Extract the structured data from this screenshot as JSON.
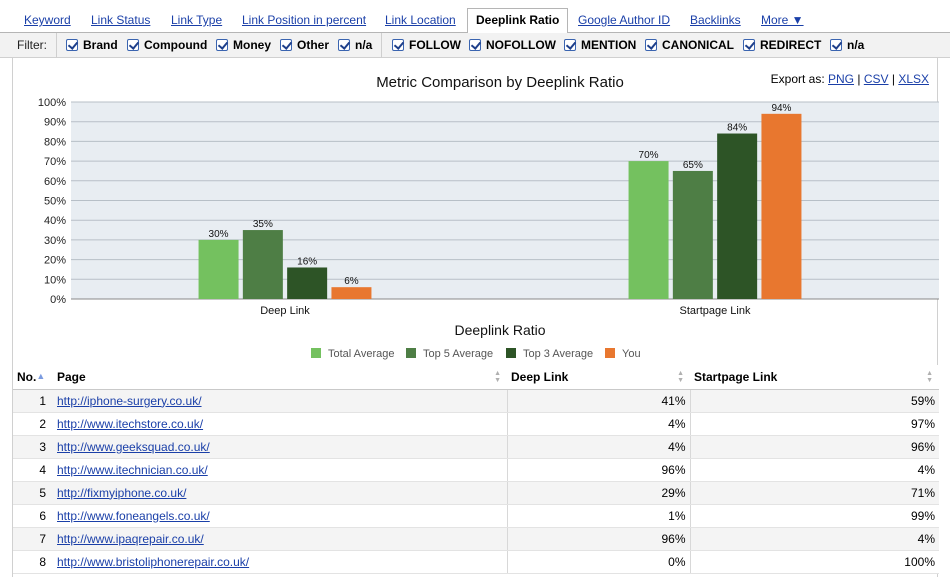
{
  "tabs": [
    {
      "label": "Keyword",
      "active": false
    },
    {
      "label": "Link Status",
      "active": false
    },
    {
      "label": "Link Type",
      "active": false
    },
    {
      "label": "Link Position in percent",
      "active": false
    },
    {
      "label": "Link Location",
      "active": false
    },
    {
      "label": "Deeplink Ratio",
      "active": true
    },
    {
      "label": "Google Author ID",
      "active": false
    },
    {
      "label": "Backlinks",
      "active": false
    },
    {
      "label": "More ▼",
      "active": false
    }
  ],
  "filter": {
    "label": "Filter:",
    "checkboxes": [
      {
        "label": "Brand",
        "checked": true
      },
      {
        "label": "Compound",
        "checked": true
      },
      {
        "label": "Money",
        "checked": true
      },
      {
        "label": "Other",
        "checked": true
      },
      {
        "label": "n/a",
        "checked": true
      },
      {
        "label": "FOLLOW",
        "checked": true
      },
      {
        "label": "NOFOLLOW",
        "checked": true
      },
      {
        "label": "MENTION",
        "checked": true
      },
      {
        "label": "CANONICAL",
        "checked": true
      },
      {
        "label": "REDIRECT",
        "checked": true
      },
      {
        "label": "n/a",
        "checked": true
      }
    ]
  },
  "export": {
    "label": "Export as:",
    "png": "PNG",
    "csv": "CSV",
    "xlsx": "XLSX"
  },
  "chart_data": {
    "type": "bar",
    "title": "Metric Comparison by Deeplink Ratio",
    "xlabel": "Deeplink Ratio",
    "ylabel": "",
    "ylim": [
      0,
      100
    ],
    "yticks": [
      "0%",
      "10%",
      "20%",
      "30%",
      "40%",
      "50%",
      "60%",
      "70%",
      "80%",
      "90%",
      "100%"
    ],
    "categories": [
      "Deep Link",
      "Startpage Link"
    ],
    "series": [
      {
        "name": "Total Average",
        "color": "#74c15f",
        "values": [
          30,
          70
        ],
        "labels": [
          "30%",
          "70%"
        ]
      },
      {
        "name": "Top 5 Average",
        "color": "#4e7e45",
        "values": [
          35,
          65
        ],
        "labels": [
          "35%",
          "65%"
        ]
      },
      {
        "name": "Top 3 Average",
        "color": "#2d5426",
        "values": [
          16,
          84
        ],
        "labels": [
          "16%",
          "84%"
        ]
      },
      {
        "name": "You",
        "color": "#e8772f",
        "values": [
          6,
          94
        ],
        "labels": [
          "6%",
          "94%"
        ]
      }
    ],
    "grid": true,
    "legend": "bottom",
    "plot_background": "#e8edf2"
  },
  "table": {
    "headers": {
      "no": "No.",
      "page": "Page",
      "deep": "Deep Link",
      "start": "Startpage Link"
    },
    "no_sort_icon": "▲",
    "rows": [
      {
        "no": "1",
        "page": "http://iphone-surgery.co.uk/",
        "deep": "41%",
        "start": "59%"
      },
      {
        "no": "2",
        "page": "http://www.itechstore.co.uk/",
        "deep": "4%",
        "start": "97%"
      },
      {
        "no": "3",
        "page": "http://www.geeksquad.co.uk/",
        "deep": "4%",
        "start": "96%"
      },
      {
        "no": "4",
        "page": "http://www.itechnician.co.uk/",
        "deep": "96%",
        "start": "4%"
      },
      {
        "no": "5",
        "page": "http://fixmyiphone.co.uk/",
        "deep": "29%",
        "start": "71%"
      },
      {
        "no": "6",
        "page": "http://www.foneangels.co.uk/",
        "deep": "1%",
        "start": "99%"
      },
      {
        "no": "7",
        "page": "http://www.ipaqrepair.co.uk/",
        "deep": "96%",
        "start": "4%"
      },
      {
        "no": "8",
        "page": "http://www.bristoliphonerepair.co.uk/",
        "deep": "0%",
        "start": "100%"
      }
    ]
  }
}
